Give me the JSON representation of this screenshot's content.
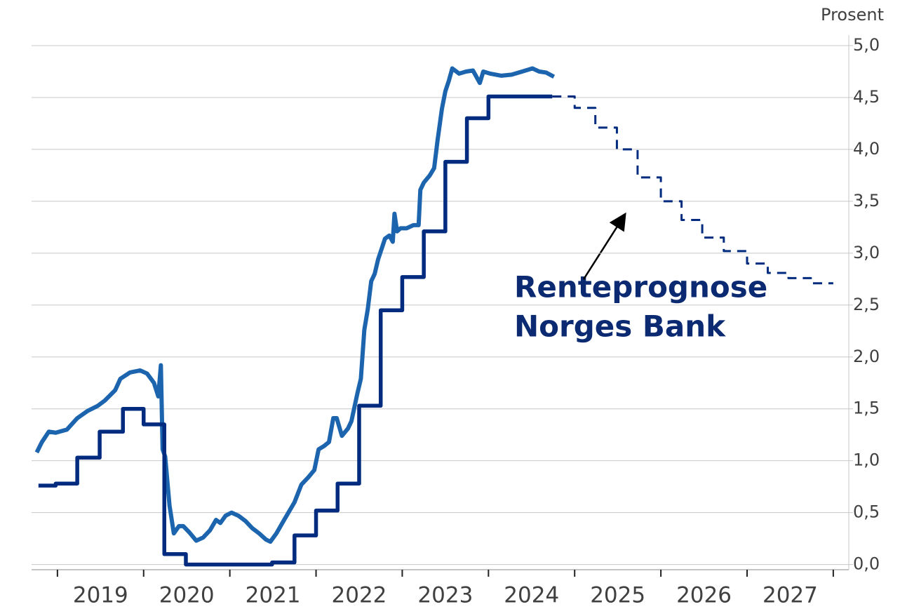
{
  "chart_data": {
    "type": "line",
    "y_axis_label": "Prosent",
    "annotation": [
      "Renteprognose",
      "Norges Bank"
    ],
    "xlim": [
      2018.7,
      2028.18
    ],
    "xticks": [
      2019,
      2020,
      2021,
      2022,
      2023,
      2024,
      2025,
      2026,
      2027,
      2028
    ],
    "xtick_labels": [
      {
        "value": 2019.5,
        "label": "2019"
      },
      {
        "value": 2020.5,
        "label": "2020"
      },
      {
        "value": 2021.5,
        "label": "2021"
      },
      {
        "value": 2022.5,
        "label": "2022"
      },
      {
        "value": 2023.5,
        "label": "2023"
      },
      {
        "value": 2024.5,
        "label": "2024"
      },
      {
        "value": 2025.5,
        "label": "2025"
      },
      {
        "value": 2026.5,
        "label": "2026"
      },
      {
        "value": 2027.5,
        "label": "2027"
      }
    ],
    "ylim": [
      -0.05,
      5.0
    ],
    "yticks": [
      {
        "value": 0,
        "label": "0,0"
      },
      {
        "value": 0.5,
        "label": "0,5"
      },
      {
        "value": 1,
        "label": "1,0"
      },
      {
        "value": 1.5,
        "label": "1,5"
      },
      {
        "value": 2,
        "label": "2,0"
      },
      {
        "value": 2.5,
        "label": "2,5"
      },
      {
        "value": 3,
        "label": "3,0"
      },
      {
        "value": 3.5,
        "label": "3,5"
      },
      {
        "value": 4,
        "label": "4,0"
      },
      {
        "value": 4.5,
        "label": "4,5"
      },
      {
        "value": 5,
        "label": "5,0"
      }
    ],
    "grid": true,
    "series": [
      {
        "color": "#1c65ae",
        "step": false,
        "dashed": false,
        "x": [
          2018.76,
          2018.82,
          2018.9,
          2018.98,
          2019.11,
          2019.23,
          2019.35,
          2019.47,
          2019.55,
          2019.67,
          2019.73,
          2019.84,
          2019.96,
          2020.04,
          2020.12,
          2020.17,
          2020.2,
          2020.22,
          2020.25,
          2020.3,
          2020.35,
          2020.41,
          2020.46,
          2020.53,
          2020.61,
          2020.69,
          2020.77,
          2020.84,
          2020.89,
          2020.95,
          2021.02,
          2021.1,
          2021.18,
          2021.26,
          2021.34,
          2021.42,
          2021.47,
          2021.54,
          2021.63,
          2021.75,
          2021.83,
          2021.91,
          2021.98,
          2022.03,
          2022.09,
          2022.15,
          2022.2,
          2022.24,
          2022.3,
          2022.37,
          2022.41,
          2022.48,
          2022.52,
          2022.56,
          2022.6,
          2022.64,
          2022.68,
          2022.72,
          2022.76,
          2022.8,
          2022.85,
          2022.89,
          2022.91,
          2022.94,
          2022.98,
          2023.05,
          2023.13,
          2023.19,
          2023.21,
          2023.25,
          2023.32,
          2023.37,
          2023.41,
          2023.46,
          2023.5,
          2023.54,
          2023.58,
          2023.66,
          2023.74,
          2023.82,
          2023.9,
          2023.94,
          2024.02,
          2024.15,
          2024.27,
          2024.39,
          2024.51,
          2024.59,
          2024.67,
          2024.76
        ],
        "values": [
          1.08,
          1.18,
          1.28,
          1.27,
          1.3,
          1.41,
          1.48,
          1.53,
          1.58,
          1.68,
          1.79,
          1.85,
          1.87,
          1.84,
          1.75,
          1.62,
          1.92,
          1.11,
          1.04,
          0.57,
          0.3,
          0.37,
          0.37,
          0.31,
          0.23,
          0.26,
          0.33,
          0.43,
          0.4,
          0.47,
          0.5,
          0.47,
          0.42,
          0.35,
          0.3,
          0.24,
          0.22,
          0.3,
          0.43,
          0.6,
          0.77,
          0.84,
          0.91,
          1.11,
          1.14,
          1.18,
          1.41,
          1.41,
          1.24,
          1.31,
          1.38,
          1.65,
          1.79,
          2.26,
          2.46,
          2.73,
          2.8,
          2.94,
          3.04,
          3.14,
          3.17,
          3.11,
          3.38,
          3.21,
          3.24,
          3.24,
          3.27,
          3.27,
          3.61,
          3.68,
          3.75,
          3.82,
          4.09,
          4.39,
          4.56,
          4.66,
          4.78,
          4.73,
          4.75,
          4.76,
          4.64,
          4.75,
          4.73,
          4.71,
          4.72,
          4.75,
          4.78,
          4.75,
          4.74,
          4.7
        ]
      },
      {
        "color": "#002b7f",
        "step": true,
        "dashed": false,
        "x": [
          2018.78,
          2018.98,
          2019.23,
          2019.49,
          2019.76,
          2020.0,
          2020.24,
          2020.49,
          2021.49,
          2021.75,
          2022.0,
          2022.25,
          2022.5,
          2022.75,
          2023.0,
          2023.25,
          2023.5,
          2023.75,
          2024.0,
          2024.74
        ],
        "values": [
          0.76,
          0.78,
          1.03,
          1.28,
          1.5,
          1.35,
          0.1,
          0.0,
          0.02,
          0.28,
          0.52,
          0.78,
          1.53,
          2.45,
          2.77,
          3.21,
          3.88,
          4.3,
          4.51,
          4.51
        ]
      },
      {
        "color": "#002b7f",
        "step": true,
        "dashed": true,
        "x": [
          2024.74,
          2025.0,
          2025.24,
          2025.49,
          2025.73,
          2026.0,
          2026.24,
          2026.48,
          2026.73,
          2027.0,
          2027.24,
          2027.48,
          2027.74,
          2028.0
        ],
        "values": [
          4.51,
          4.4,
          4.21,
          4.0,
          3.73,
          3.5,
          3.32,
          3.15,
          3.02,
          2.9,
          2.81,
          2.76,
          2.71,
          2.71
        ]
      }
    ]
  }
}
